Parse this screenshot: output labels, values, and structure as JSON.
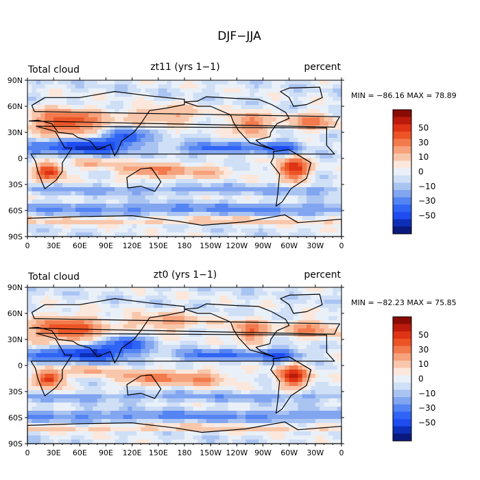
{
  "figure": {
    "title": "DJF−JJA"
  },
  "panels": [
    {
      "id": "zt11",
      "left_label": "Total cloud",
      "title": "zt11 (yrs 1−1)",
      "right_label": "percent",
      "stats": "MIN = −86.16 MAX =  78.89"
    },
    {
      "id": "zt0",
      "left_label": "Total cloud",
      "title": "zt0 (yrs 1−1)",
      "right_label": "percent",
      "stats": "MIN = −82.23 MAX =  75.85"
    }
  ],
  "chart_data": {
    "type": "heatmap",
    "title": "DJF−JJA",
    "variable": "Total cloud",
    "units": "percent",
    "x_ticks": [
      "0",
      "30E",
      "60E",
      "90E",
      "120E",
      "150E",
      "180",
      "150W",
      "120W",
      "90W",
      "60W",
      "30W",
      "0"
    ],
    "y_ticks": [
      "90N",
      "60N",
      "30N",
      "0",
      "30S",
      "60S",
      "90S"
    ],
    "xlim": [
      0,
      360
    ],
    "ylim": [
      -90,
      90
    ],
    "colorbar": {
      "labels": [
        "50",
        "30",
        "10",
        "0",
        "−10",
        "−30",
        "−50"
      ],
      "levels": [
        -70,
        -60,
        -50,
        -40,
        -30,
        -20,
        -10,
        -5,
        0,
        5,
        10,
        20,
        30,
        40,
        50,
        60,
        70
      ],
      "colors": [
        "#0a1a7c",
        "#0d2fb8",
        "#1e4cf0",
        "#2f64f5",
        "#5484f2",
        "#82a5f0",
        "#aac4f2",
        "#cfdff6",
        "#eaf0f8",
        "#fbe7db",
        "#f8c7ab",
        "#f6a27d",
        "#f27a4c",
        "#ec5426",
        "#de3315",
        "#bb1a0c",
        "#8a0b05"
      ]
    },
    "series": [
      {
        "name": "zt11",
        "min": -86.16,
        "max": 78.89
      },
      {
        "name": "zt0",
        "min": -82.23,
        "max": 75.85
      }
    ]
  }
}
